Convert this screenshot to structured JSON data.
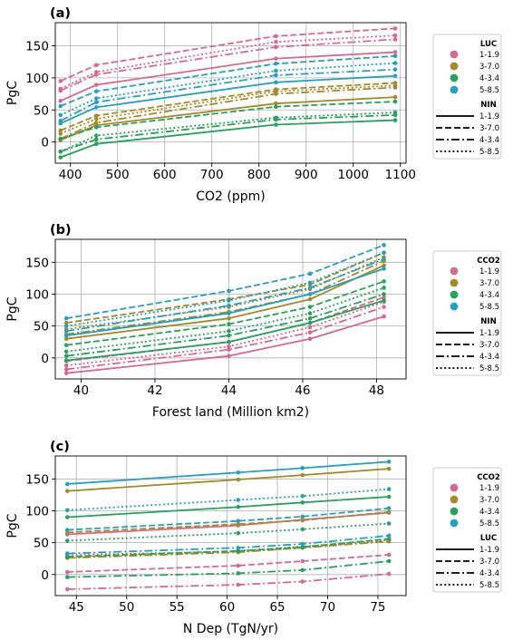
{
  "chart_data": [
    {
      "type": "line",
      "panel_label": "(a)",
      "xlabel": "CO2 (ppm)",
      "ylabel": "PgC",
      "xlim": [
        368,
        1112
      ],
      "ylim": [
        -33,
        186
      ],
      "xticks": [
        400,
        500,
        600,
        700,
        800,
        900,
        1000,
        1100
      ],
      "yticks": [
        0,
        50,
        100,
        150
      ],
      "grid": true,
      "x": [
        379,
        455,
        836,
        1089
      ],
      "legend": {
        "placement": "right",
        "color_title": "LUC",
        "style_title": "NIN",
        "entries": [
          {
            "label": "1-1.9",
            "color": "#d9688a"
          },
          {
            "label": "3-7.0",
            "color": "#a68a25"
          },
          {
            "label": "4-3.4",
            "color": "#24a35a"
          },
          {
            "label": "5-8.5",
            "color": "#23a1c2"
          }
        ],
        "styles": [
          {
            "label": "1-1.9",
            "dash": "solid"
          },
          {
            "label": "3-7.0",
            "dash": "dashed"
          },
          {
            "label": "4-3.4",
            "dash": "dashdot"
          },
          {
            "label": "5-8.5",
            "dash": "dotted"
          }
        ]
      },
      "series": [
        {
          "color_index": 0,
          "style_index": 0,
          "values": [
            64,
            89,
            130,
            140
          ]
        },
        {
          "color_index": 0,
          "style_index": 1,
          "values": [
            95,
            120,
            165,
            177
          ]
        },
        {
          "color_index": 0,
          "style_index": 2,
          "values": [
            80,
            105,
            148,
            160
          ]
        },
        {
          "color_index": 0,
          "style_index": 3,
          "values": [
            83,
            109,
            156,
            166
          ]
        },
        {
          "color_index": 1,
          "style_index": 0,
          "values": [
            3,
            26,
            60,
            70
          ]
        },
        {
          "color_index": 1,
          "style_index": 1,
          "values": [
            18,
            41,
            82,
            92
          ]
        },
        {
          "color_index": 1,
          "style_index": 2,
          "values": [
            5,
            30,
            75,
            85
          ]
        },
        {
          "color_index": 1,
          "style_index": 3,
          "values": [
            13,
            36,
            79,
            88
          ]
        },
        {
          "color_index": 2,
          "style_index": 0,
          "values": [
            -24,
            -3,
            27,
            34
          ]
        },
        {
          "color_index": 2,
          "style_index": 1,
          "values": [
            5,
            23,
            55,
            63
          ]
        },
        {
          "color_index": 2,
          "style_index": 2,
          "values": [
            -15,
            4,
            35,
            42
          ]
        },
        {
          "color_index": 2,
          "style_index": 3,
          "values": [
            -15,
            10,
            38,
            46
          ]
        },
        {
          "color_index": 3,
          "style_index": 0,
          "values": [
            29,
            54,
            93,
            103
          ]
        },
        {
          "color_index": 3,
          "style_index": 1,
          "values": [
            56,
            79,
            122,
            134
          ]
        },
        {
          "color_index": 3,
          "style_index": 2,
          "values": [
            33,
            62,
            104,
            113
          ]
        },
        {
          "color_index": 3,
          "style_index": 3,
          "values": [
            42,
            68,
            111,
            123
          ]
        }
      ]
    },
    {
      "type": "line",
      "panel_label": "(b)",
      "xlabel": "Forest land (Million km2)",
      "ylabel": "PgC",
      "xlim": [
        39.3,
        48.8
      ],
      "ylim": [
        -33,
        186
      ],
      "xticks": [
        40,
        42,
        44,
        46,
        48
      ],
      "yticks": [
        0,
        50,
        100,
        150
      ],
      "grid": true,
      "x": [
        39.6,
        44.0,
        46.2,
        48.2
      ],
      "legend": {
        "placement": "right",
        "color_title": "CCO2",
        "style_title": "NIN",
        "entries": [
          {
            "label": "1-1.9",
            "color": "#d9688a"
          },
          {
            "label": "3-7.0",
            "color": "#a68a25"
          },
          {
            "label": "4-3.4",
            "color": "#24a35a"
          },
          {
            "label": "5-8.5",
            "color": "#23a1c2"
          }
        ],
        "styles": [
          {
            "label": "1-1.9",
            "dash": "solid"
          },
          {
            "label": "3-7.0",
            "dash": "dashed"
          },
          {
            "label": "4-3.4",
            "dash": "dashdot"
          },
          {
            "label": "5-8.5",
            "dash": "dotted"
          }
        ]
      },
      "series": [
        {
          "color_index": 0,
          "style_index": 0,
          "values": [
            -24,
            3,
            30,
            65
          ]
        },
        {
          "color_index": 0,
          "style_index": 1,
          "values": [
            -5,
            25,
            55,
            95
          ]
        },
        {
          "color_index": 0,
          "style_index": 2,
          "values": [
            -18,
            13,
            40,
            80
          ]
        },
        {
          "color_index": 0,
          "style_index": 3,
          "values": [
            -12,
            18,
            48,
            88
          ]
        },
        {
          "color_index": 1,
          "style_index": 0,
          "values": [
            30,
            62,
            92,
            145
          ]
        },
        {
          "color_index": 1,
          "style_index": 1,
          "values": [
            55,
            92,
            115,
            165
          ]
        },
        {
          "color_index": 1,
          "style_index": 2,
          "values": [
            37,
            72,
            100,
            152
          ]
        },
        {
          "color_index": 1,
          "style_index": 3,
          "values": [
            45,
            80,
            108,
            158
          ]
        },
        {
          "color_index": 2,
          "style_index": 0,
          "values": [
            -4,
            25,
            55,
            90
          ]
        },
        {
          "color_index": 2,
          "style_index": 1,
          "values": [
            20,
            53,
            80,
            120
          ]
        },
        {
          "color_index": 2,
          "style_index": 2,
          "values": [
            3,
            35,
            62,
            100
          ]
        },
        {
          "color_index": 2,
          "style_index": 3,
          "values": [
            10,
            42,
            70,
            110
          ]
        },
        {
          "color_index": 3,
          "style_index": 0,
          "values": [
            35,
            70,
            100,
            140
          ]
        },
        {
          "color_index": 3,
          "style_index": 1,
          "values": [
            62,
            105,
            132,
            177
          ]
        },
        {
          "color_index": 3,
          "style_index": 2,
          "values": [
            42,
            82,
            110,
            155
          ]
        },
        {
          "color_index": 3,
          "style_index": 3,
          "values": [
            50,
            90,
            118,
            165
          ]
        }
      ]
    },
    {
      "type": "line",
      "panel_label": "(c)",
      "xlabel": "N Dep (TgN/yr)",
      "ylabel": "PgC",
      "xlim": [
        42.9,
        77.8
      ],
      "ylim": [
        -33,
        186
      ],
      "xticks": [
        45,
        50,
        55,
        60,
        65,
        70,
        75
      ],
      "yticks": [
        0,
        50,
        100,
        150
      ],
      "grid": true,
      "x": [
        44.1,
        61.1,
        67.5,
        76.1
      ],
      "legend": {
        "placement": "right",
        "color_title": "CCO2",
        "style_title": "LUC",
        "entries": [
          {
            "label": "1-1.9",
            "color": "#d9688a"
          },
          {
            "label": "3-7.0",
            "color": "#a68a25"
          },
          {
            "label": "4-3.4",
            "color": "#24a35a"
          },
          {
            "label": "5-8.5",
            "color": "#23a1c2"
          }
        ],
        "styles": [
          {
            "label": "1-1.9",
            "dash": "solid"
          },
          {
            "label": "3-7.0",
            "dash": "dashed"
          },
          {
            "label": "4-3.4",
            "dash": "dashdot"
          },
          {
            "label": "5-8.5",
            "dash": "dotted"
          }
        ]
      },
      "series": [
        {
          "color_index": 0,
          "style_index": 0,
          "values": [
            63,
            77,
            86,
            97
          ]
        },
        {
          "color_index": 0,
          "style_index": 1,
          "values": [
            4,
            14,
            21,
            31
          ]
        },
        {
          "color_index": 0,
          "style_index": 2,
          "values": [
            -23,
            -16,
            -11,
            1
          ]
        },
        {
          "color_index": 0,
          "style_index": 3,
          "values": [
            31,
            36,
            42,
            54
          ]
        },
        {
          "color_index": 1,
          "style_index": 0,
          "values": [
            131,
            149,
            156,
            166
          ]
        },
        {
          "color_index": 1,
          "style_index": 1,
          "values": [
            66,
            79,
            85,
            98
          ]
        },
        {
          "color_index": 1,
          "style_index": 2,
          "values": [
            26,
            35,
            42,
            52
          ]
        },
        {
          "color_index": 1,
          "style_index": 3,
          "values": [
            27,
            37,
            44,
            54
          ]
        },
        {
          "color_index": 2,
          "style_index": 0,
          "values": [
            90,
            106,
            113,
            122
          ]
        },
        {
          "color_index": 2,
          "style_index": 1,
          "values": [
            28,
            37,
            43,
            56
          ]
        },
        {
          "color_index": 2,
          "style_index": 2,
          "values": [
            -4,
            2,
            7,
            21
          ]
        },
        {
          "color_index": 2,
          "style_index": 3,
          "values": [
            53,
            65,
            71,
            80
          ]
        },
        {
          "color_index": 3,
          "style_index": 0,
          "values": [
            142,
            160,
            167,
            177
          ]
        },
        {
          "color_index": 3,
          "style_index": 1,
          "values": [
            70,
            84,
            91,
            104
          ]
        },
        {
          "color_index": 3,
          "style_index": 2,
          "values": [
            33,
            42,
            48,
            61
          ]
        },
        {
          "color_index": 3,
          "style_index": 3,
          "values": [
            101,
            117,
            123,
            134
          ]
        }
      ]
    }
  ]
}
